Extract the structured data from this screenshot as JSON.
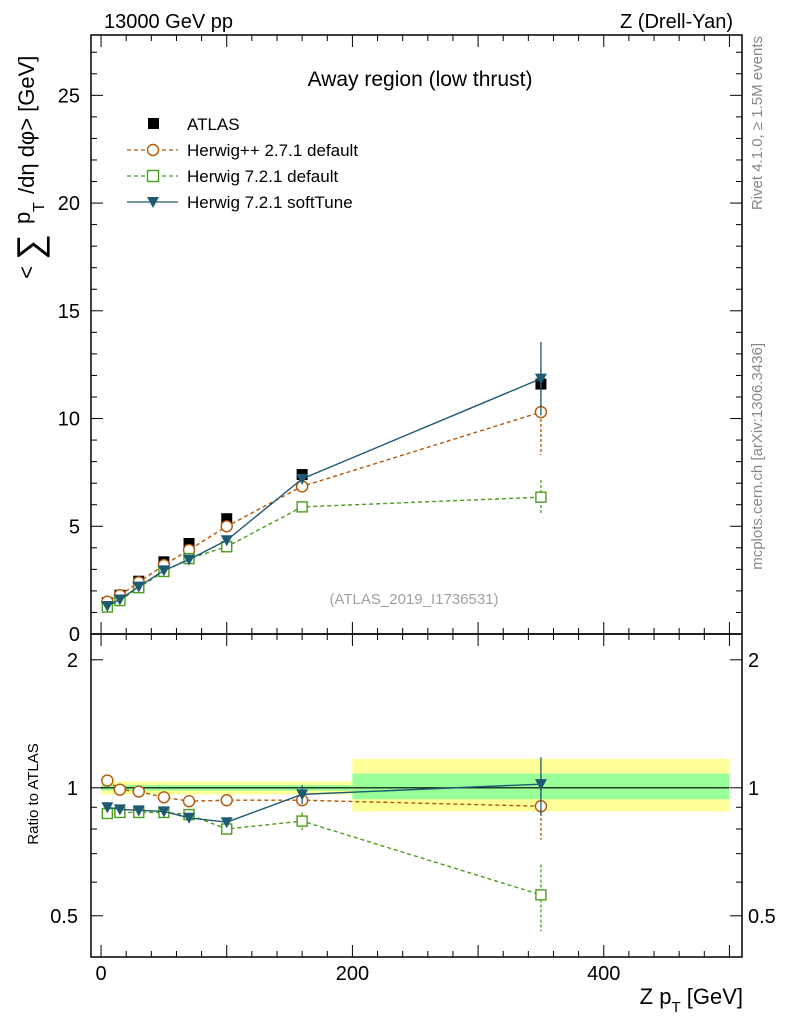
{
  "header": {
    "left": "13000 GeV pp",
    "right": "Z (Drell-Yan)"
  },
  "side_text": {
    "rivet": "Rivet 4.1.0, ≥ 1.5M events",
    "mcplots": "mcplots.cern.ch [arXiv:1306.3436]"
  },
  "chart_data": [
    {
      "type": "scatter",
      "panel": "main",
      "title": "Away region (low thrust)",
      "ylabel": "< ∑ p_T /dη dφ> [GeV]",
      "ylabel_parts": {
        "lt": "<",
        "sum": "∑",
        "p": "p",
        "T": "T",
        "rest": "/dη dφ> [GeV]"
      },
      "xlim": [
        -8,
        510
      ],
      "ylim": [
        0,
        27.8
      ],
      "yticks": [
        0,
        5,
        10,
        15,
        20,
        25
      ],
      "ytick_labels": [
        "0",
        "5",
        "10",
        "15",
        "20",
        "25"
      ],
      "watermark": "(ATLAS_2019_I1736531)",
      "legend": [
        {
          "name": "ATLAS",
          "marker": "square-filled",
          "color": "#000000"
        },
        {
          "name": "Herwig++ 2.7.1 default",
          "marker": "circle-open",
          "color": "#b35806",
          "dash": "dashed"
        },
        {
          "name": "Herwig 7.2.1 default",
          "marker": "square-open",
          "color": "#4a9e1b",
          "dash": "dashed"
        },
        {
          "name": "Herwig 7.2.1 softTune",
          "marker": "triangle-down-filled",
          "color": "#1f5a73",
          "dash": "solid"
        }
      ],
      "x": [
        5,
        15,
        30,
        50,
        70,
        100,
        160,
        350
      ],
      "series": [
        {
          "name": "ATLAS",
          "values": [
            1.45,
            1.8,
            2.45,
            3.35,
            4.2,
            5.35,
            7.4,
            11.6
          ]
        },
        {
          "name": "Herwig++ 2.7.1 default",
          "values": [
            1.5,
            1.8,
            2.4,
            3.2,
            3.9,
            5.0,
            6.85,
            10.3
          ],
          "err": [
            0,
            0,
            0,
            0,
            0,
            0,
            0,
            2.0
          ]
        },
        {
          "name": "Herwig 7.2.1 default",
          "values": [
            1.25,
            1.55,
            2.15,
            2.9,
            3.5,
            4.05,
            5.9,
            6.35
          ],
          "err": [
            0,
            0,
            0,
            0,
            0,
            0,
            0,
            0.8
          ]
        },
        {
          "name": "Herwig 7.2.1 softTune",
          "values": [
            1.3,
            1.6,
            2.2,
            2.95,
            3.45,
            4.35,
            7.2,
            11.85
          ],
          "err": [
            0,
            0,
            0,
            0,
            0,
            0,
            0,
            1.7
          ]
        }
      ]
    },
    {
      "type": "scatter",
      "panel": "ratio",
      "ylabel": "Ratio to ATLAS",
      "xlabel": "Z p_T [GeV]",
      "xlabel_parts": {
        "pre": "Z p",
        "sub": "T",
        "post": " [GeV]"
      },
      "xlim": [
        -8,
        510
      ],
      "ylim": [
        0.4,
        2.3
      ],
      "yscale": "log",
      "xticks": [
        0,
        200,
        400
      ],
      "xtick_labels": [
        "0",
        "200",
        "400"
      ],
      "yticks": [
        0.5,
        1,
        2
      ],
      "ytick_labels": [
        "0.5",
        "1",
        "2"
      ],
      "bands": [
        {
          "x": [
            0,
            200
          ],
          "inner": [
            0.985,
            1.015
          ],
          "outer": [
            0.965,
            1.035
          ]
        },
        {
          "x": [
            200,
            500
          ],
          "inner": [
            0.94,
            1.08
          ],
          "outer": [
            0.88,
            1.17
          ]
        }
      ],
      "x": [
        5,
        15,
        30,
        50,
        70,
        100,
        160,
        350
      ],
      "series": [
        {
          "name": "Herwig++ 2.7.1 default",
          "values": [
            1.04,
            0.99,
            0.98,
            0.95,
            0.93,
            0.935,
            0.935,
            0.905
          ],
          "err": [
            0,
            0,
            0,
            0,
            0,
            0,
            0,
            0.15
          ]
        },
        {
          "name": "Herwig 7.2.1 default",
          "values": [
            0.87,
            0.875,
            0.875,
            0.875,
            0.865,
            0.8,
            0.835,
            0.56
          ],
          "err": [
            0,
            0,
            0,
            0,
            0,
            0,
            0.04,
            0.1
          ]
        },
        {
          "name": "Herwig 7.2.1 softTune",
          "values": [
            0.9,
            0.89,
            0.885,
            0.88,
            0.85,
            0.83,
            0.965,
            1.02
          ],
          "err": [
            0,
            0,
            0,
            0,
            0,
            0,
            0.05,
            0.16
          ]
        }
      ]
    }
  ]
}
